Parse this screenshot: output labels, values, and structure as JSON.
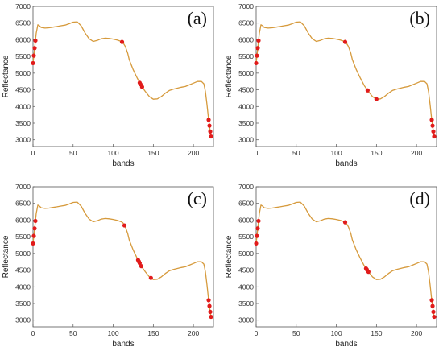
{
  "chart_data": [
    {
      "panel": "(a)",
      "type": "line",
      "xlabel": "bands",
      "ylabel": "Reflectance",
      "xlim": [
        0,
        225
      ],
      "ylim": [
        2800,
        7000
      ],
      "xticks": [
        "0",
        "50",
        "100",
        "150",
        "200"
      ],
      "yticks": [
        "3000",
        "3500",
        "4000",
        "4500",
        "5000",
        "5500",
        "6000",
        "6500",
        "7000"
      ],
      "grid": false,
      "selected_bands": [
        0,
        1,
        2,
        3,
        111,
        133,
        134,
        136,
        219,
        220,
        221,
        222
      ]
    },
    {
      "panel": "(b)",
      "type": "line",
      "xlabel": "bands",
      "ylabel": "Reflectance",
      "xlim": [
        0,
        225
      ],
      "ylim": [
        2800,
        7000
      ],
      "xticks": [
        "0",
        "50",
        "100",
        "150",
        "200"
      ],
      "yticks": [
        "3000",
        "3500",
        "4000",
        "4500",
        "5000",
        "5500",
        "6000",
        "6500",
        "7000"
      ],
      "grid": false,
      "selected_bands": [
        0,
        1,
        2,
        3,
        111,
        139,
        150,
        219,
        220,
        221,
        222
      ]
    },
    {
      "panel": "(c)",
      "type": "line",
      "xlabel": "bands",
      "ylabel": "Reflectance",
      "xlim": [
        0,
        225
      ],
      "ylim": [
        2800,
        7000
      ],
      "xticks": [
        "0",
        "50",
        "100",
        "150",
        "200"
      ],
      "yticks": [
        "3000",
        "3500",
        "4000",
        "4500",
        "5000",
        "5500",
        "6000",
        "6500",
        "7000"
      ],
      "grid": false,
      "selected_bands": [
        0,
        1,
        2,
        3,
        114,
        131,
        132,
        133,
        135,
        147,
        219,
        220,
        221,
        222
      ]
    },
    {
      "panel": "(d)",
      "type": "line",
      "xlabel": "bands",
      "ylabel": "Reflectance",
      "xlim": [
        0,
        225
      ],
      "ylim": [
        2800,
        7000
      ],
      "xticks": [
        "0",
        "50",
        "100",
        "150",
        "200"
      ],
      "yticks": [
        "3000",
        "3500",
        "4000",
        "4500",
        "5000",
        "5500",
        "6000",
        "6500",
        "7000"
      ],
      "grid": false,
      "selected_bands": [
        0,
        1,
        2,
        3,
        111,
        137,
        138,
        140,
        219,
        220,
        221,
        222
      ]
    }
  ],
  "spectrum": {
    "bands": [
      0,
      2,
      4,
      6,
      8,
      10,
      15,
      20,
      25,
      30,
      35,
      40,
      45,
      50,
      55,
      60,
      65,
      70,
      75,
      80,
      85,
      90,
      95,
      100,
      105,
      110,
      112,
      115,
      118,
      120,
      125,
      130,
      135,
      140,
      145,
      150,
      155,
      160,
      165,
      170,
      175,
      180,
      185,
      190,
      195,
      200,
      205,
      210,
      213,
      215,
      217,
      219,
      221,
      222
    ],
    "reflectance": [
      5300,
      5750,
      6200,
      6450,
      6420,
      6370,
      6350,
      6360,
      6380,
      6400,
      6420,
      6440,
      6480,
      6530,
      6540,
      6420,
      6200,
      6030,
      5950,
      5980,
      6030,
      6050,
      6040,
      6020,
      5990,
      5950,
      5920,
      5800,
      5600,
      5400,
      5100,
      4850,
      4620,
      4450,
      4300,
      4220,
      4230,
      4300,
      4400,
      4480,
      4520,
      4550,
      4580,
      4600,
      4650,
      4700,
      4750,
      4750,
      4680,
      4450,
      4050,
      3600,
      3250,
      3100
    ]
  },
  "colors": {
    "curve": "#d69a3c",
    "marker": "#e11b1b",
    "axis": "#555555",
    "background": "#ffffff"
  }
}
